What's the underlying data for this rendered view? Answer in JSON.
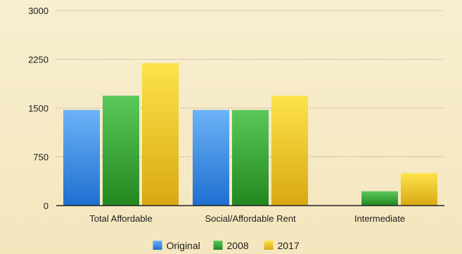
{
  "chart_data": {
    "type": "bar",
    "categories": [
      "Total Affordable",
      "Social/Affordable Rent",
      "Intermediate"
    ],
    "series": [
      {
        "name": "Original",
        "color": "#3f8fe6",
        "values": [
          1470,
          1470,
          0
        ]
      },
      {
        "name": "2008",
        "color": "#3aa33a",
        "values": [
          1690,
          1470,
          220
        ]
      },
      {
        "name": "2017",
        "color": "#f0cc21",
        "values": [
          2190,
          1690,
          500
        ]
      }
    ],
    "y_ticks": [
      "0",
      "750",
      "1500",
      "2250",
      "3000"
    ],
    "ylim": [
      0,
      3000
    ],
    "grid": true,
    "legend_position": "bottom"
  }
}
